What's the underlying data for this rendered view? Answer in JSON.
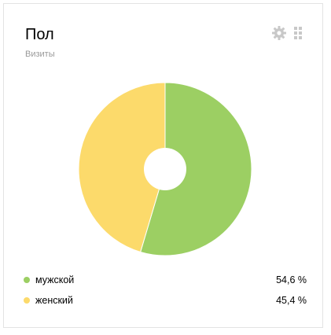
{
  "widget": {
    "title": "Пол",
    "subtitle": "Визиты",
    "settings_icon": "gear-icon",
    "drag_icon": "drag-handle-icon"
  },
  "colors": {
    "male": "#9ccf63",
    "female": "#fcda6b",
    "icon": "#c8c8c8",
    "border": "#e3e3e3"
  },
  "legend": [
    {
      "label": "мужской",
      "value": "54,6 %"
    },
    {
      "label": "женский",
      "value": "45,4 %"
    }
  ],
  "chart_data": {
    "type": "pie",
    "categories": [
      "мужской",
      "женский"
    ],
    "values": [
      54.6,
      45.4
    ],
    "colors": [
      "#9ccf63",
      "#fcda6b"
    ],
    "donut": true
  }
}
